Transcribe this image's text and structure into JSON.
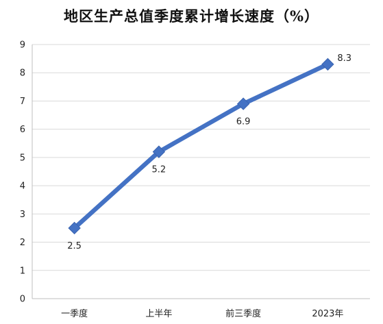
{
  "chart_data": {
    "type": "line",
    "title": "地区生产总值季度累计增长速度（%）",
    "categories": [
      "一季度",
      "上半年",
      "前三季度",
      "2023年"
    ],
    "series": [
      {
        "values": [
          2.5,
          5.2,
          6.9,
          8.3
        ],
        "data_labels": [
          "2.5",
          "5.2",
          "6.9",
          "8.3"
        ],
        "color": "#4472C4"
      }
    ],
    "y_ticks": [
      "0",
      "1",
      "2",
      "3",
      "4",
      "5",
      "6",
      "7",
      "8",
      "9"
    ],
    "ylim": [
      0,
      9
    ],
    "grid": true,
    "legend": "none",
    "marker": "diamond"
  }
}
